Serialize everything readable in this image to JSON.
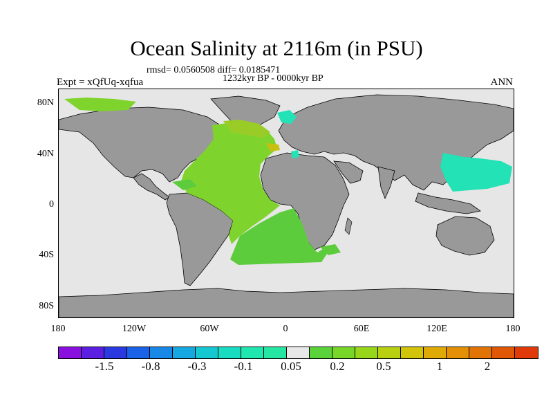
{
  "title": "Ocean Salinity at 2116m (in PSU)",
  "stats": "rmsd= 0.0560508 diff= 0.0185471",
  "period": "1232kyr BP - 0000kyr BP",
  "expt": "Expt = xQfUq-xqfua",
  "season": "ANN",
  "y_labels": [
    "80N",
    "40N",
    "0",
    "40S",
    "80S"
  ],
  "x_labels": [
    "180",
    "120W",
    "60W",
    "0",
    "60E",
    "120E",
    "180"
  ],
  "colorbar": {
    "colors": [
      "#8a10e0",
      "#5a1fe0",
      "#2a3ae0",
      "#1a62e6",
      "#1888e6",
      "#16a8e0",
      "#14c8d2",
      "#18dcc0",
      "#20e6b0",
      "#26e6a4",
      "#e8e8e8",
      "#5ad23a",
      "#78d628",
      "#98d61c",
      "#b8d010",
      "#d2c408",
      "#e0aa06",
      "#e49006",
      "#e27406",
      "#e05806",
      "#e03a0a"
    ],
    "labels": [
      "-1.5",
      "-0.8",
      "-0.3",
      "-0.1",
      "0.05",
      "0.2",
      "0.5",
      "1",
      "2"
    ]
  },
  "colors": {
    "land": "#999999",
    "ocean_neutral": "#e6e6e6",
    "atlantic": "#7ed42c",
    "atlantic_north": "#9acc28",
    "south_atlantic": "#5ccc3c",
    "cyan": "#22e2b6",
    "gold": "#c8c010"
  }
}
